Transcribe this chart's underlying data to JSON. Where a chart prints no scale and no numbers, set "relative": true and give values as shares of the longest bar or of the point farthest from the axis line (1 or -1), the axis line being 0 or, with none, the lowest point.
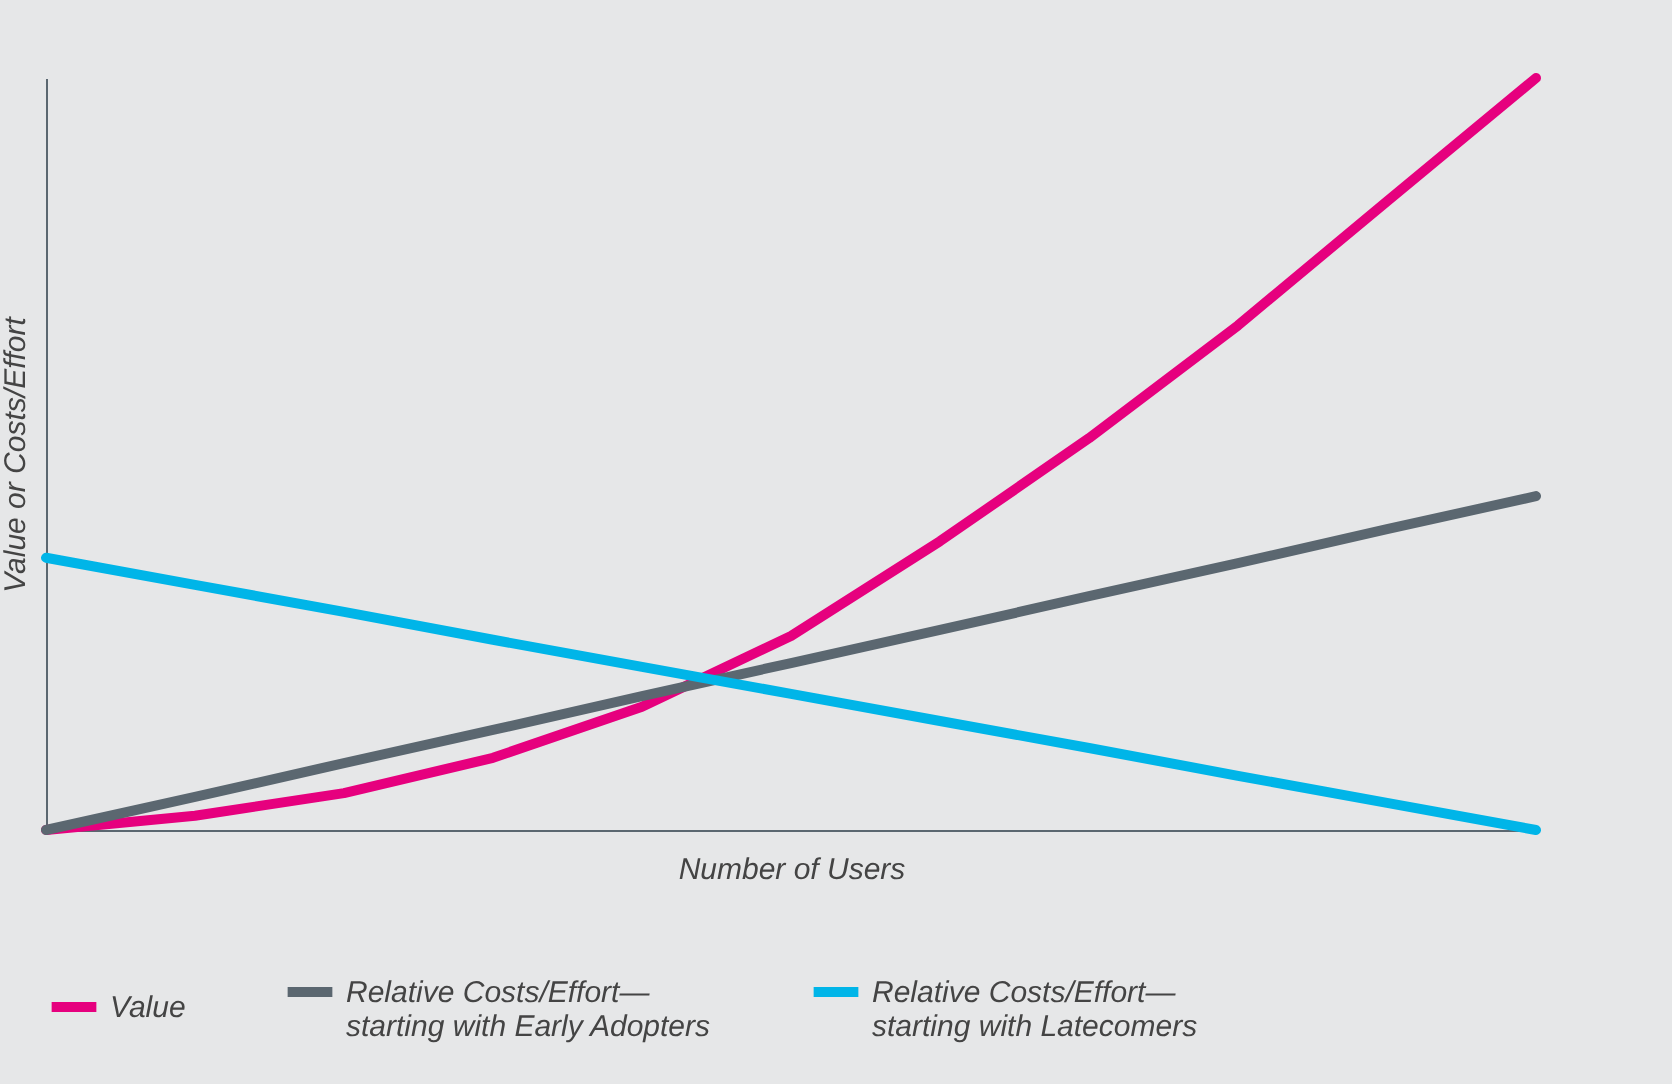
{
  "chart_data": {
    "type": "line",
    "relative": true,
    "xlabel": "Number of Users",
    "ylabel": "Value or Costs/Effort",
    "categories": [
      null,
      null,
      null,
      null,
      null,
      null,
      null,
      null,
      null,
      null,
      null
    ],
    "legend": "bottom",
    "grid": false,
    "marker": "none",
    "line_style": "solid",
    "series": [
      {
        "name": "Value",
        "color": "#e6007e",
        "values": [
          0,
          0.019,
          0.049,
          0.096,
          0.164,
          0.258,
          0.384,
          0.521,
          0.671,
          0.836,
          1
        ]
      },
      {
        "name": "Relative Costs/Effort—starting with Early Adopters",
        "color": "#5b6770",
        "values": [
          0,
          0.044,
          0.089,
          0.133,
          0.178,
          0.222,
          0.266,
          0.311,
          0.355,
          0.4,
          0.444
        ]
      },
      {
        "name": "Relative Costs/Effort—starting with Latecomers",
        "color": "#00b5e8",
        "values": [
          0.362,
          0.326,
          0.29,
          0.253,
          0.217,
          0.181,
          0.145,
          0.109,
          0.072,
          0.036,
          0
        ]
      }
    ]
  }
}
